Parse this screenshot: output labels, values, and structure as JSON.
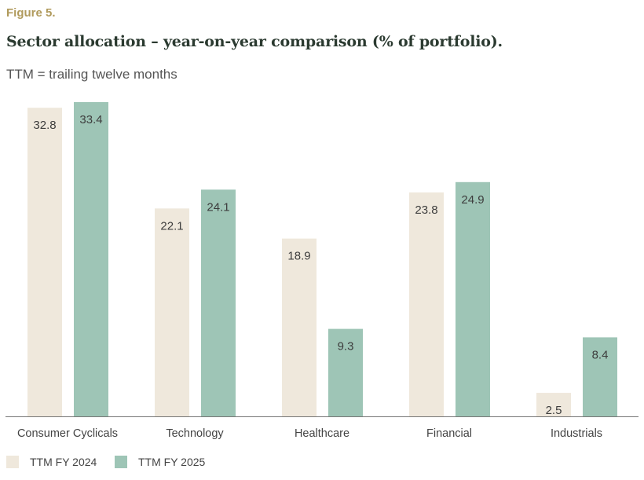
{
  "figure_label": "Figure 5.",
  "chart_data": {
    "type": "bar",
    "title": "Sector allocation – year-on-year comparison (% of portfolio).",
    "subtitle": "TTM = trailing twelve months",
    "categories": [
      "Consumer Cyclicals",
      "Technology",
      "Healthcare",
      "Financial",
      "Industrials"
    ],
    "series": [
      {
        "name": "TTM FY 2024",
        "color": "#efe8dc",
        "values": [
          32.8,
          22.1,
          18.9,
          23.8,
          2.5
        ]
      },
      {
        "name": "TTM FY 2025",
        "color": "#9ec5b6",
        "values": [
          33.4,
          24.1,
          9.3,
          24.9,
          8.4
        ]
      }
    ],
    "xlabel": "",
    "ylabel": "",
    "ylim": [
      0,
      33.4
    ],
    "grid": false,
    "data_labels": true,
    "legend": "bottom-left"
  }
}
